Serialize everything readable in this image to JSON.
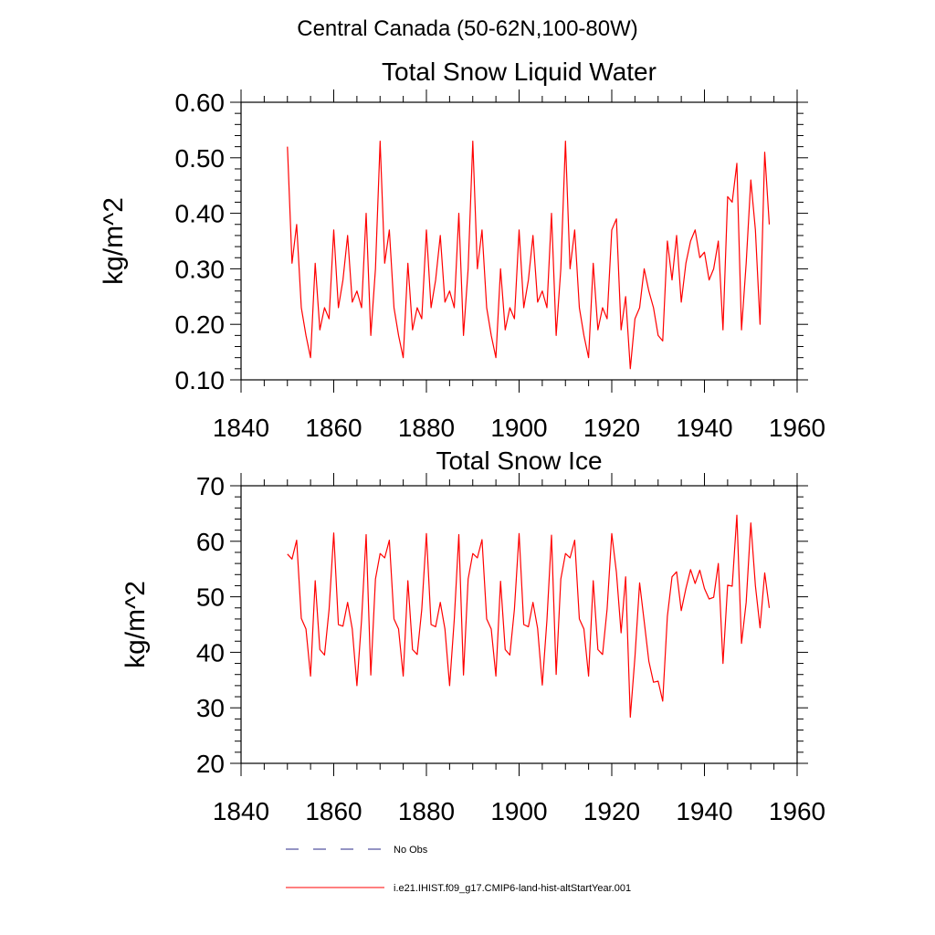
{
  "page_title": "Central Canada (50-62N,100-80W)",
  "chart_data": [
    {
      "type": "line",
      "title": "Total Snow Liquid Water",
      "ylabel": "kg/m^2",
      "xlabel": "",
      "xlim": [
        1840,
        1960
      ],
      "ylim": [
        0.1,
        0.6
      ],
      "x_ticks": [
        1840,
        1860,
        1880,
        1900,
        1920,
        1940,
        1960
      ],
      "x_tick_labels": [
        "1840",
        "1860",
        "1880",
        "1900",
        "1920",
        "1940",
        "1960"
      ],
      "y_ticks": [
        0.1,
        0.2,
        0.3,
        0.4,
        0.5,
        0.6
      ],
      "y_tick_labels": [
        "0.10",
        "0.20",
        "0.30",
        "0.40",
        "0.50",
        "0.60"
      ],
      "grid": false,
      "series": [
        {
          "name": "i.e21.IHIST.f09_g17.CMIP6-land-hist-altStartYear.001",
          "color": "#ff0000",
          "x": [
            1850,
            1851,
            1852,
            1853,
            1854,
            1855,
            1856,
            1857,
            1858,
            1859,
            1860,
            1861,
            1862,
            1863,
            1864,
            1865,
            1866,
            1867,
            1868,
            1869,
            1870,
            1871,
            1872,
            1873,
            1874,
            1875,
            1876,
            1877,
            1878,
            1879,
            1880,
            1881,
            1882,
            1883,
            1884,
            1885,
            1886,
            1887,
            1888,
            1889,
            1890,
            1891,
            1892,
            1893,
            1894,
            1895,
            1896,
            1897,
            1898,
            1899,
            1900,
            1901,
            1902,
            1903,
            1904,
            1905,
            1906,
            1907,
            1908,
            1909,
            1910,
            1911,
            1912,
            1913,
            1914,
            1915,
            1916,
            1917,
            1918,
            1919,
            1920,
            1921,
            1922,
            1923,
            1924,
            1925,
            1926,
            1927,
            1928,
            1929,
            1930,
            1931,
            1932,
            1933,
            1934,
            1935,
            1936,
            1937,
            1938,
            1939,
            1940,
            1941,
            1942,
            1943,
            1944,
            1945,
            1946,
            1947,
            1948,
            1949,
            1950,
            1951,
            1952,
            1953,
            1954
          ],
          "y": [
            0.52,
            0.31,
            0.38,
            0.23,
            0.18,
            0.14,
            0.31,
            0.19,
            0.23,
            0.21,
            0.37,
            0.23,
            0.28,
            0.36,
            0.24,
            0.26,
            0.23,
            0.4,
            0.18,
            0.3,
            0.53,
            0.31,
            0.37,
            0.23,
            0.18,
            0.14,
            0.31,
            0.19,
            0.23,
            0.21,
            0.37,
            0.23,
            0.28,
            0.36,
            0.24,
            0.26,
            0.23,
            0.4,
            0.18,
            0.3,
            0.53,
            0.3,
            0.37,
            0.23,
            0.18,
            0.14,
            0.3,
            0.19,
            0.23,
            0.21,
            0.37,
            0.23,
            0.28,
            0.36,
            0.24,
            0.26,
            0.23,
            0.4,
            0.18,
            0.3,
            0.53,
            0.3,
            0.37,
            0.23,
            0.18,
            0.14,
            0.31,
            0.19,
            0.23,
            0.21,
            0.37,
            0.39,
            0.19,
            0.25,
            0.12,
            0.21,
            0.23,
            0.3,
            0.26,
            0.23,
            0.18,
            0.17,
            0.35,
            0.28,
            0.36,
            0.24,
            0.31,
            0.35,
            0.37,
            0.32,
            0.33,
            0.28,
            0.3,
            0.35,
            0.19,
            0.43,
            0.42,
            0.49,
            0.19,
            0.31,
            0.46,
            0.37,
            0.2,
            0.51,
            0.38
          ]
        }
      ]
    },
    {
      "type": "line",
      "title": "Total Snow Ice",
      "ylabel": "kg/m^2",
      "xlabel": "",
      "xlim": [
        1840,
        1960
      ],
      "ylim": [
        20,
        70
      ],
      "x_ticks": [
        1840,
        1860,
        1880,
        1900,
        1920,
        1940,
        1960
      ],
      "x_tick_labels": [
        "1840",
        "1860",
        "1880",
        "1900",
        "1920",
        "1940",
        "1960"
      ],
      "y_ticks": [
        20,
        30,
        40,
        50,
        60,
        70
      ],
      "y_tick_labels": [
        "20",
        "30",
        "40",
        "50",
        "60",
        "70"
      ],
      "grid": false,
      "series": [
        {
          "name": "i.e21.IHIST.f09_g17.CMIP6-land-hist-altStartYear.001",
          "color": "#ff0000",
          "x": [
            1850,
            1851,
            1852,
            1853,
            1854,
            1855,
            1856,
            1857,
            1858,
            1859,
            1860,
            1861,
            1862,
            1863,
            1864,
            1865,
            1866,
            1867,
            1868,
            1869,
            1870,
            1871,
            1872,
            1873,
            1874,
            1875,
            1876,
            1877,
            1878,
            1879,
            1880,
            1881,
            1882,
            1883,
            1884,
            1885,
            1886,
            1887,
            1888,
            1889,
            1890,
            1891,
            1892,
            1893,
            1894,
            1895,
            1896,
            1897,
            1898,
            1899,
            1900,
            1901,
            1902,
            1903,
            1904,
            1905,
            1906,
            1907,
            1908,
            1909,
            1910,
            1911,
            1912,
            1913,
            1914,
            1915,
            1916,
            1917,
            1918,
            1919,
            1920,
            1921,
            1922,
            1923,
            1924,
            1925,
            1926,
            1927,
            1928,
            1929,
            1930,
            1931,
            1932,
            1933,
            1934,
            1935,
            1936,
            1937,
            1938,
            1939,
            1940,
            1941,
            1942,
            1943,
            1944,
            1945,
            1946,
            1947,
            1948,
            1949,
            1950,
            1951,
            1952,
            1953,
            1954
          ],
          "y": [
            57.7,
            56.8,
            60.2,
            46.1,
            44.2,
            35.7,
            52.9,
            40.5,
            39.5,
            47.7,
            61.5,
            45.0,
            44.7,
            49.0,
            44.2,
            34.0,
            45.9,
            61.2,
            35.9,
            53.2,
            57.8,
            57.0,
            60.2,
            46.0,
            44.2,
            35.7,
            52.9,
            40.5,
            39.6,
            47.7,
            61.4,
            45.0,
            44.6,
            49.0,
            44.2,
            34.0,
            45.9,
            61.2,
            35.9,
            53.2,
            57.8,
            57.0,
            60.3,
            46.0,
            44.2,
            35.7,
            52.8,
            40.5,
            39.5,
            47.8,
            61.4,
            45.0,
            44.6,
            49.0,
            44.3,
            34.1,
            45.8,
            61.1,
            36.0,
            53.2,
            57.8,
            57.0,
            60.2,
            46.0,
            44.2,
            35.7,
            52.9,
            40.5,
            39.6,
            47.8,
            61.4,
            54.4,
            43.5,
            53.6,
            28.3,
            39.2,
            52.5,
            45.6,
            38.4,
            34.6,
            34.8,
            31.2,
            46.5,
            53.6,
            54.5,
            47.5,
            51.5,
            54.9,
            52.4,
            54.8,
            51.5,
            49.6,
            49.9,
            56.0,
            38.0,
            52.1,
            51.9,
            64.7,
            41.6,
            49.0,
            63.3,
            52.0,
            44.4,
            54.3,
            48.0
          ]
        }
      ]
    }
  ],
  "legend": {
    "placement": "bottom",
    "items": [
      {
        "label": "No Obs",
        "style": "dashed",
        "color": "#2a2a8a"
      },
      {
        "label": "i.e21.IHIST.f09_g17.CMIP6-land-hist-altStartYear.001",
        "style": "solid",
        "color": "#ff0000"
      }
    ]
  }
}
